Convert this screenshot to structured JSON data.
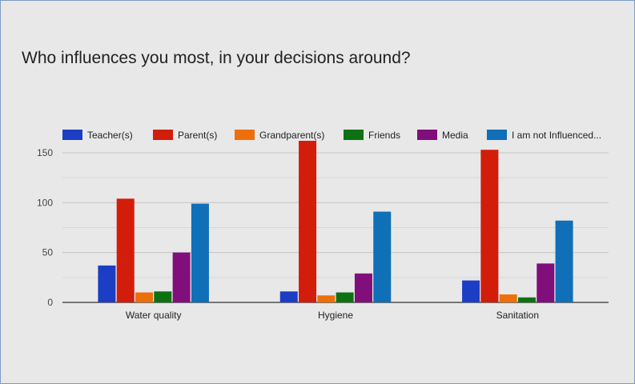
{
  "chart_data": {
    "type": "bar",
    "title": "Who influences you most, in your decisions around?",
    "categories": [
      "Water quality",
      "Hygiene",
      "Sanitation"
    ],
    "series": [
      {
        "name": "Teacher(s)",
        "color": "#1c3ec4",
        "values": [
          37,
          11,
          22
        ]
      },
      {
        "name": "Parent(s)",
        "color": "#d21d0b",
        "values": [
          104,
          162,
          153
        ]
      },
      {
        "name": "Grandparent(s)",
        "color": "#ec6f0a",
        "values": [
          10,
          7,
          8
        ]
      },
      {
        "name": "Friends",
        "color": "#0e7212",
        "values": [
          11,
          10,
          5
        ]
      },
      {
        "name": "Media",
        "color": "#800f7c",
        "values": [
          50,
          29,
          39
        ]
      },
      {
        "name": "I am not Influenced...",
        "color": "#0f6fb7",
        "values": [
          99,
          91,
          82
        ]
      }
    ],
    "ylim": [
      0,
      162
    ],
    "yticks": [
      0,
      50,
      100,
      150
    ],
    "grid": true,
    "legend_position": "top"
  }
}
